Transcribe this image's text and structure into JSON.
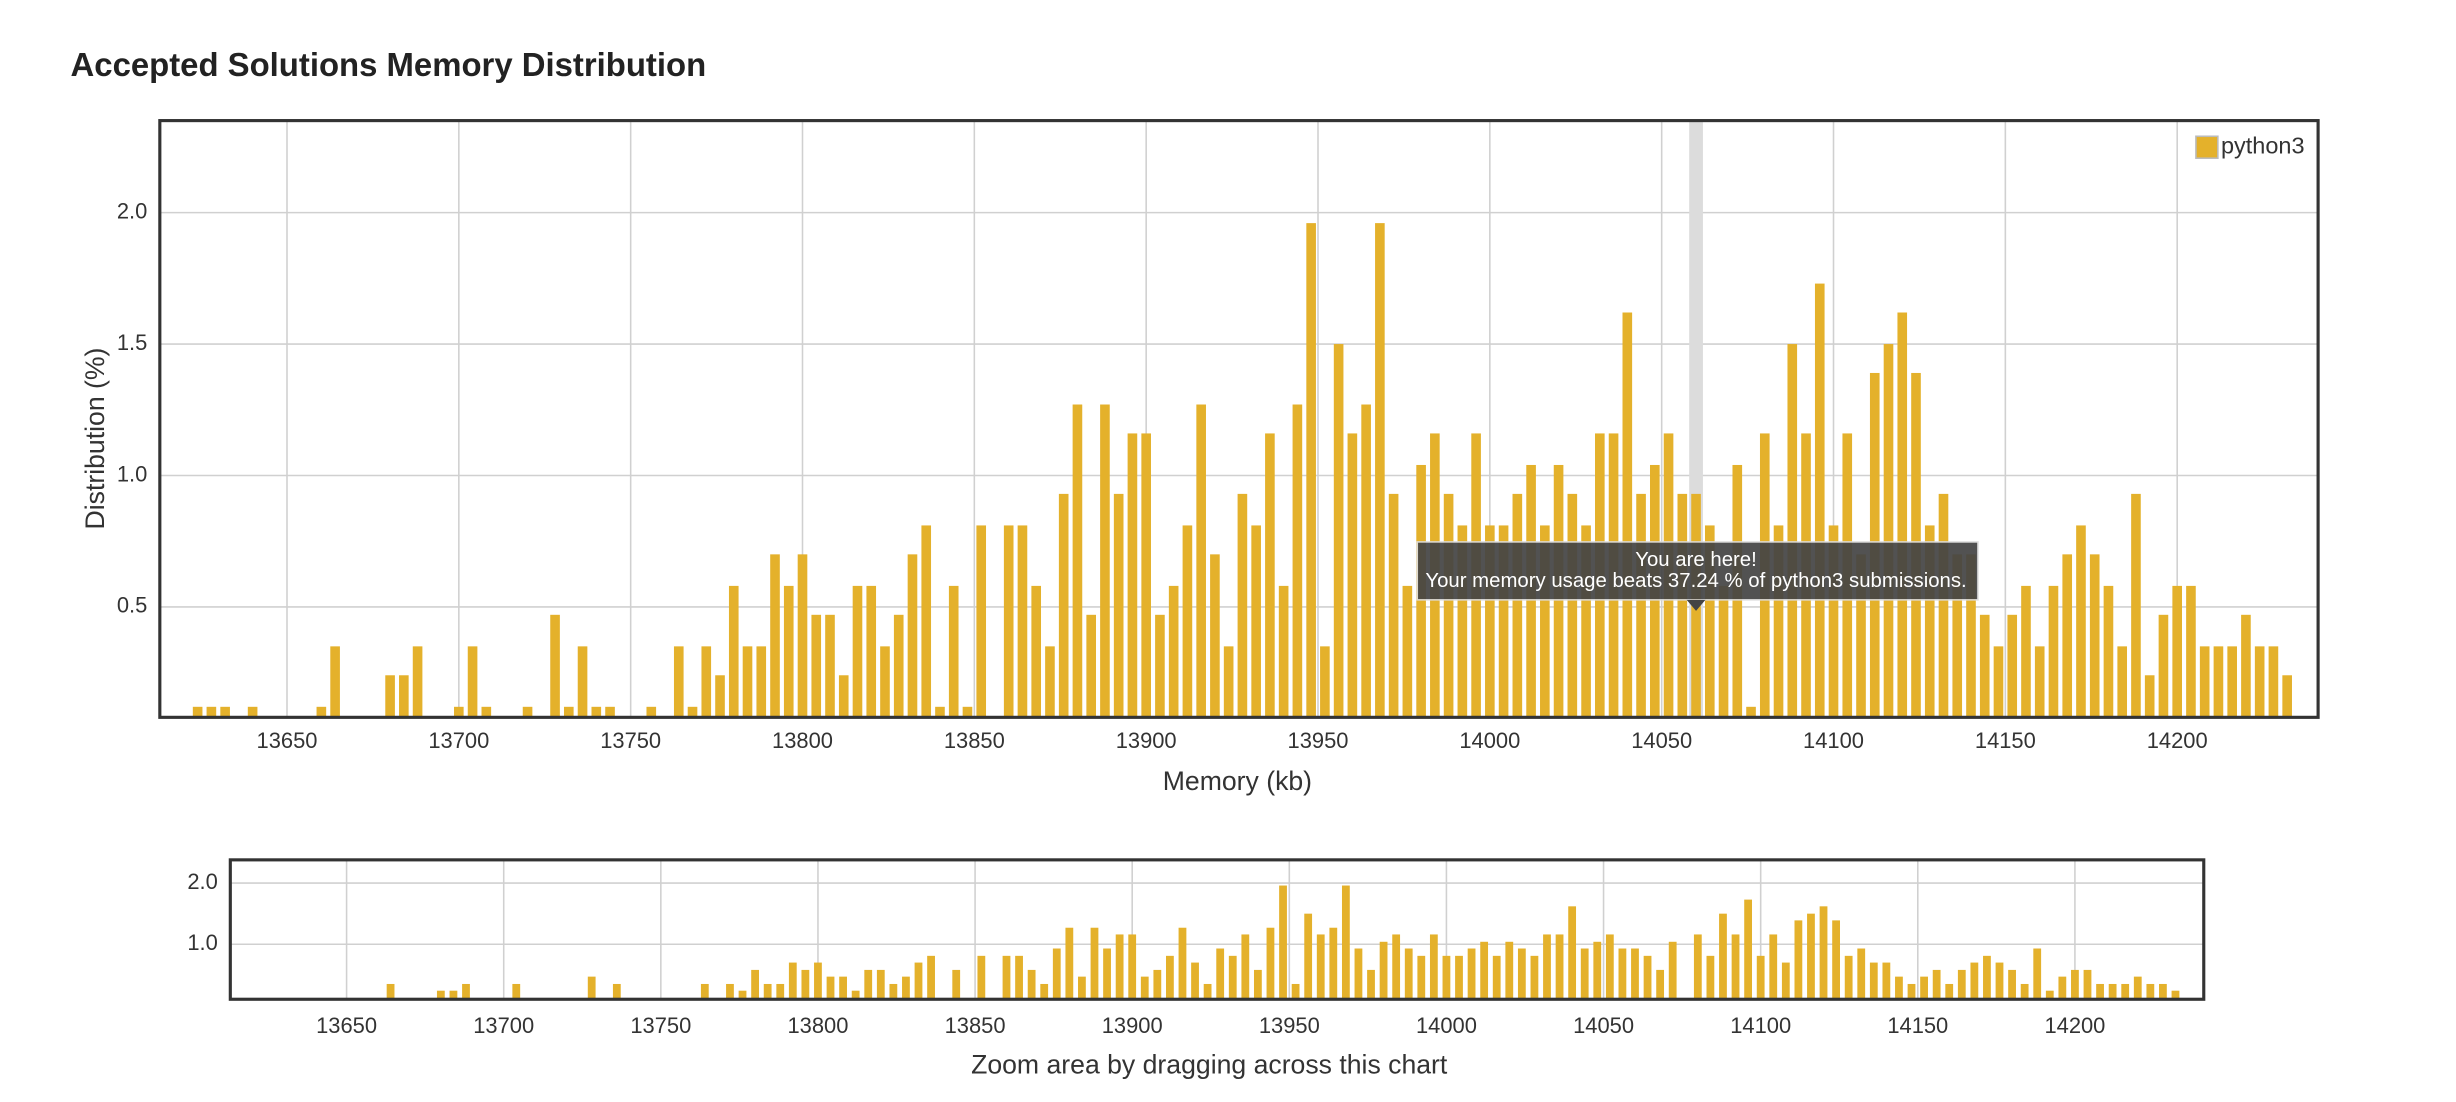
{
  "chart_data": [
    {
      "type": "bar",
      "title": "Accepted Solutions Memory Distribution",
      "xlabel": "Memory (kb)",
      "ylabel": "Distribution (%)",
      "legend": "top-right",
      "grid": true,
      "xlim": [
        13613,
        14241
      ],
      "ylim": [
        0.08,
        2.35
      ],
      "xticks": [
        13650,
        13700,
        13750,
        13800,
        13850,
        13900,
        13950,
        14000,
        14050,
        14100,
        14150,
        14200
      ],
      "yticks": [
        {
          "value": 0.5,
          "label": "0.5"
        },
        {
          "value": 1,
          "label": "1.0"
        },
        {
          "value": 1.5,
          "label": "1.5"
        },
        {
          "value": 2,
          "label": "2.0"
        }
      ],
      "bin_width": 4,
      "highlight": 14060,
      "tooltip": [
        "You are here!",
        "Your memory usage beats 37.24 % of python3 submissions."
      ],
      "series_name": "python3",
      "color": "#e4b12b",
      "x": [
        13624,
        13628,
        13632,
        13640,
        13660,
        13664,
        13680,
        13684,
        13688,
        13700,
        13704,
        13708,
        13720,
        13728,
        13732,
        13736,
        13740,
        13744,
        13756,
        13764,
        13768,
        13772,
        13776,
        13780,
        13784,
        13788,
        13792,
        13796,
        13800,
        13804,
        13808,
        13812,
        13816,
        13820,
        13824,
        13828,
        13832,
        13836,
        13840,
        13844,
        13848,
        13852,
        13860,
        13864,
        13868,
        13872,
        13876,
        13880,
        13884,
        13888,
        13892,
        13896,
        13900,
        13904,
        13908,
        13912,
        13916,
        13920,
        13924,
        13928,
        13932,
        13936,
        13940,
        13944,
        13948,
        13952,
        13956,
        13960,
        13964,
        13968,
        13972,
        13976,
        13980,
        13984,
        13988,
        13992,
        13996,
        14000,
        14004,
        14008,
        14012,
        14016,
        14020,
        14024,
        14028,
        14032,
        14036,
        14040,
        14044,
        14048,
        14052,
        14056,
        14060,
        14064,
        14068,
        14072,
        14076,
        14080,
        14084,
        14088,
        14092,
        14096,
        14100,
        14104,
        14108,
        14112,
        14116,
        14120,
        14124,
        14128,
        14132,
        14136,
        14140,
        14144,
        14148,
        14152,
        14156,
        14160,
        14164,
        14168,
        14172,
        14176,
        14180,
        14184,
        14188,
        14192,
        14196,
        14200,
        14204,
        14208,
        14212,
        14216,
        14220,
        14224,
        14228,
        14232
      ],
      "values": [
        0.12,
        0.12,
        0.12,
        0.12,
        0.12,
        0.35,
        0.24,
        0.24,
        0.35,
        0.12,
        0.35,
        0.12,
        0.12,
        0.47,
        0.12,
        0.35,
        0.12,
        0.12,
        0.12,
        0.35,
        0.12,
        0.35,
        0.24,
        0.58,
        0.35,
        0.35,
        0.7,
        0.58,
        0.7,
        0.47,
        0.47,
        0.24,
        0.58,
        0.58,
        0.35,
        0.47,
        0.7,
        0.81,
        0.12,
        0.58,
        0.12,
        0.81,
        0.81,
        0.81,
        0.58,
        0.35,
        0.93,
        1.27,
        0.47,
        1.27,
        0.93,
        1.16,
        1.16,
        0.47,
        0.58,
        0.81,
        1.27,
        0.7,
        0.35,
        0.93,
        0.81,
        1.16,
        0.58,
        1.27,
        1.96,
        0.35,
        1.5,
        1.16,
        1.27,
        1.96,
        0.93,
        0.58,
        1.04,
        1.16,
        0.93,
        0.81,
        1.16,
        0.81,
        0.81,
        0.93,
        1.04,
        0.81,
        1.04,
        0.93,
        0.81,
        1.16,
        1.16,
        1.62,
        0.93,
        1.04,
        1.16,
        0.93,
        0.93,
        0.81,
        0.58,
        1.04,
        0.12,
        1.16,
        0.81,
        1.5,
        1.16,
        1.73,
        0.81,
        1.16,
        0.7,
        1.39,
        1.5,
        1.62,
        1.39,
        0.81,
        0.93,
        0.7,
        0.7,
        0.47,
        0.35,
        0.47,
        0.58,
        0.35,
        0.58,
        0.7,
        0.81,
        0.7,
        0.58,
        0.35,
        0.93,
        0.24,
        0.47,
        0.58,
        0.58,
        0.35,
        0.35,
        0.35,
        0.47,
        0.35,
        0.35,
        0.24
      ]
    },
    {
      "type": "navigator",
      "caption": "Zoom area by dragging across this chart",
      "ylim": [
        0.1,
        2.38
      ],
      "yticks": [
        {
          "value": 1,
          "label": "1.0"
        },
        {
          "value": 2,
          "label": "2.0"
        }
      ]
    }
  ]
}
